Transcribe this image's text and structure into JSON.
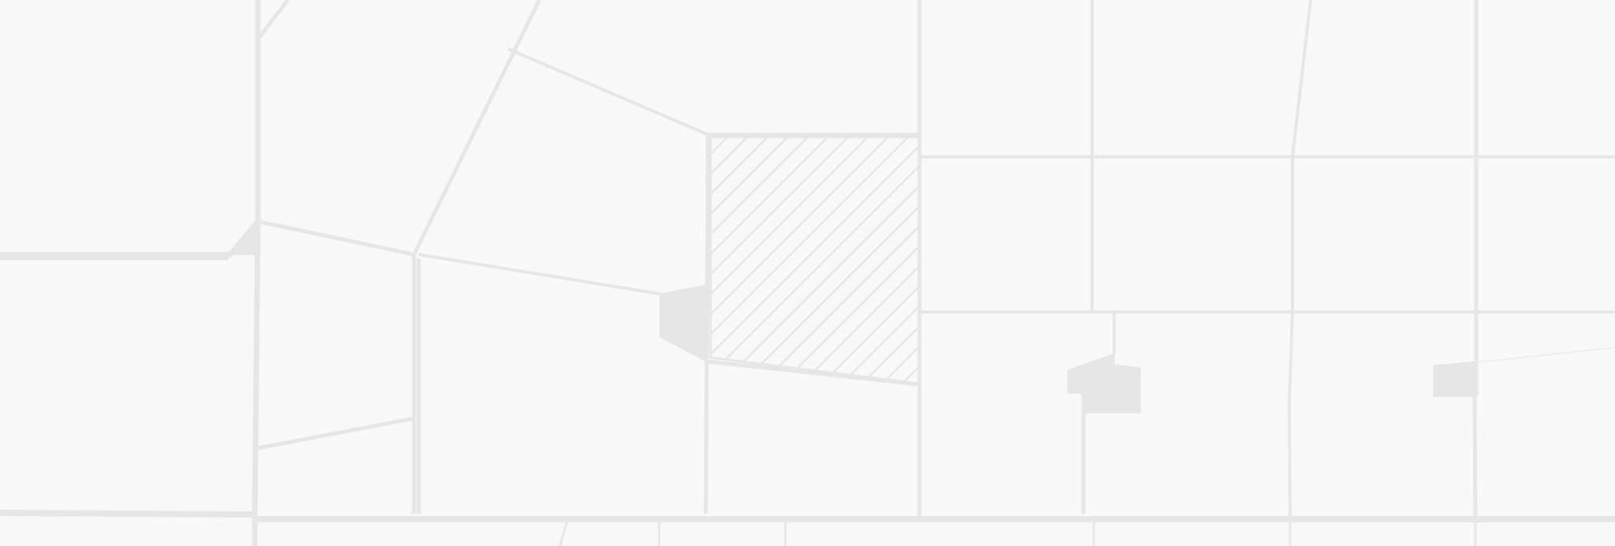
{
  "map": {
    "kind": "street-map-tile",
    "labels": [],
    "colors": {
      "background": "#f9f9f9",
      "road_stroke": "#e6e6e6",
      "building_fill": "#e6e6e6",
      "hatch_stroke": "#e6e6e6"
    },
    "features": [
      {
        "name": "hatched-parcel",
        "kind": "hatched-area"
      },
      {
        "name": "left-corner-building",
        "kind": "building"
      },
      {
        "name": "center-left-building",
        "kind": "building"
      },
      {
        "name": "center-building",
        "kind": "building"
      },
      {
        "name": "right-building",
        "kind": "building"
      }
    ]
  }
}
